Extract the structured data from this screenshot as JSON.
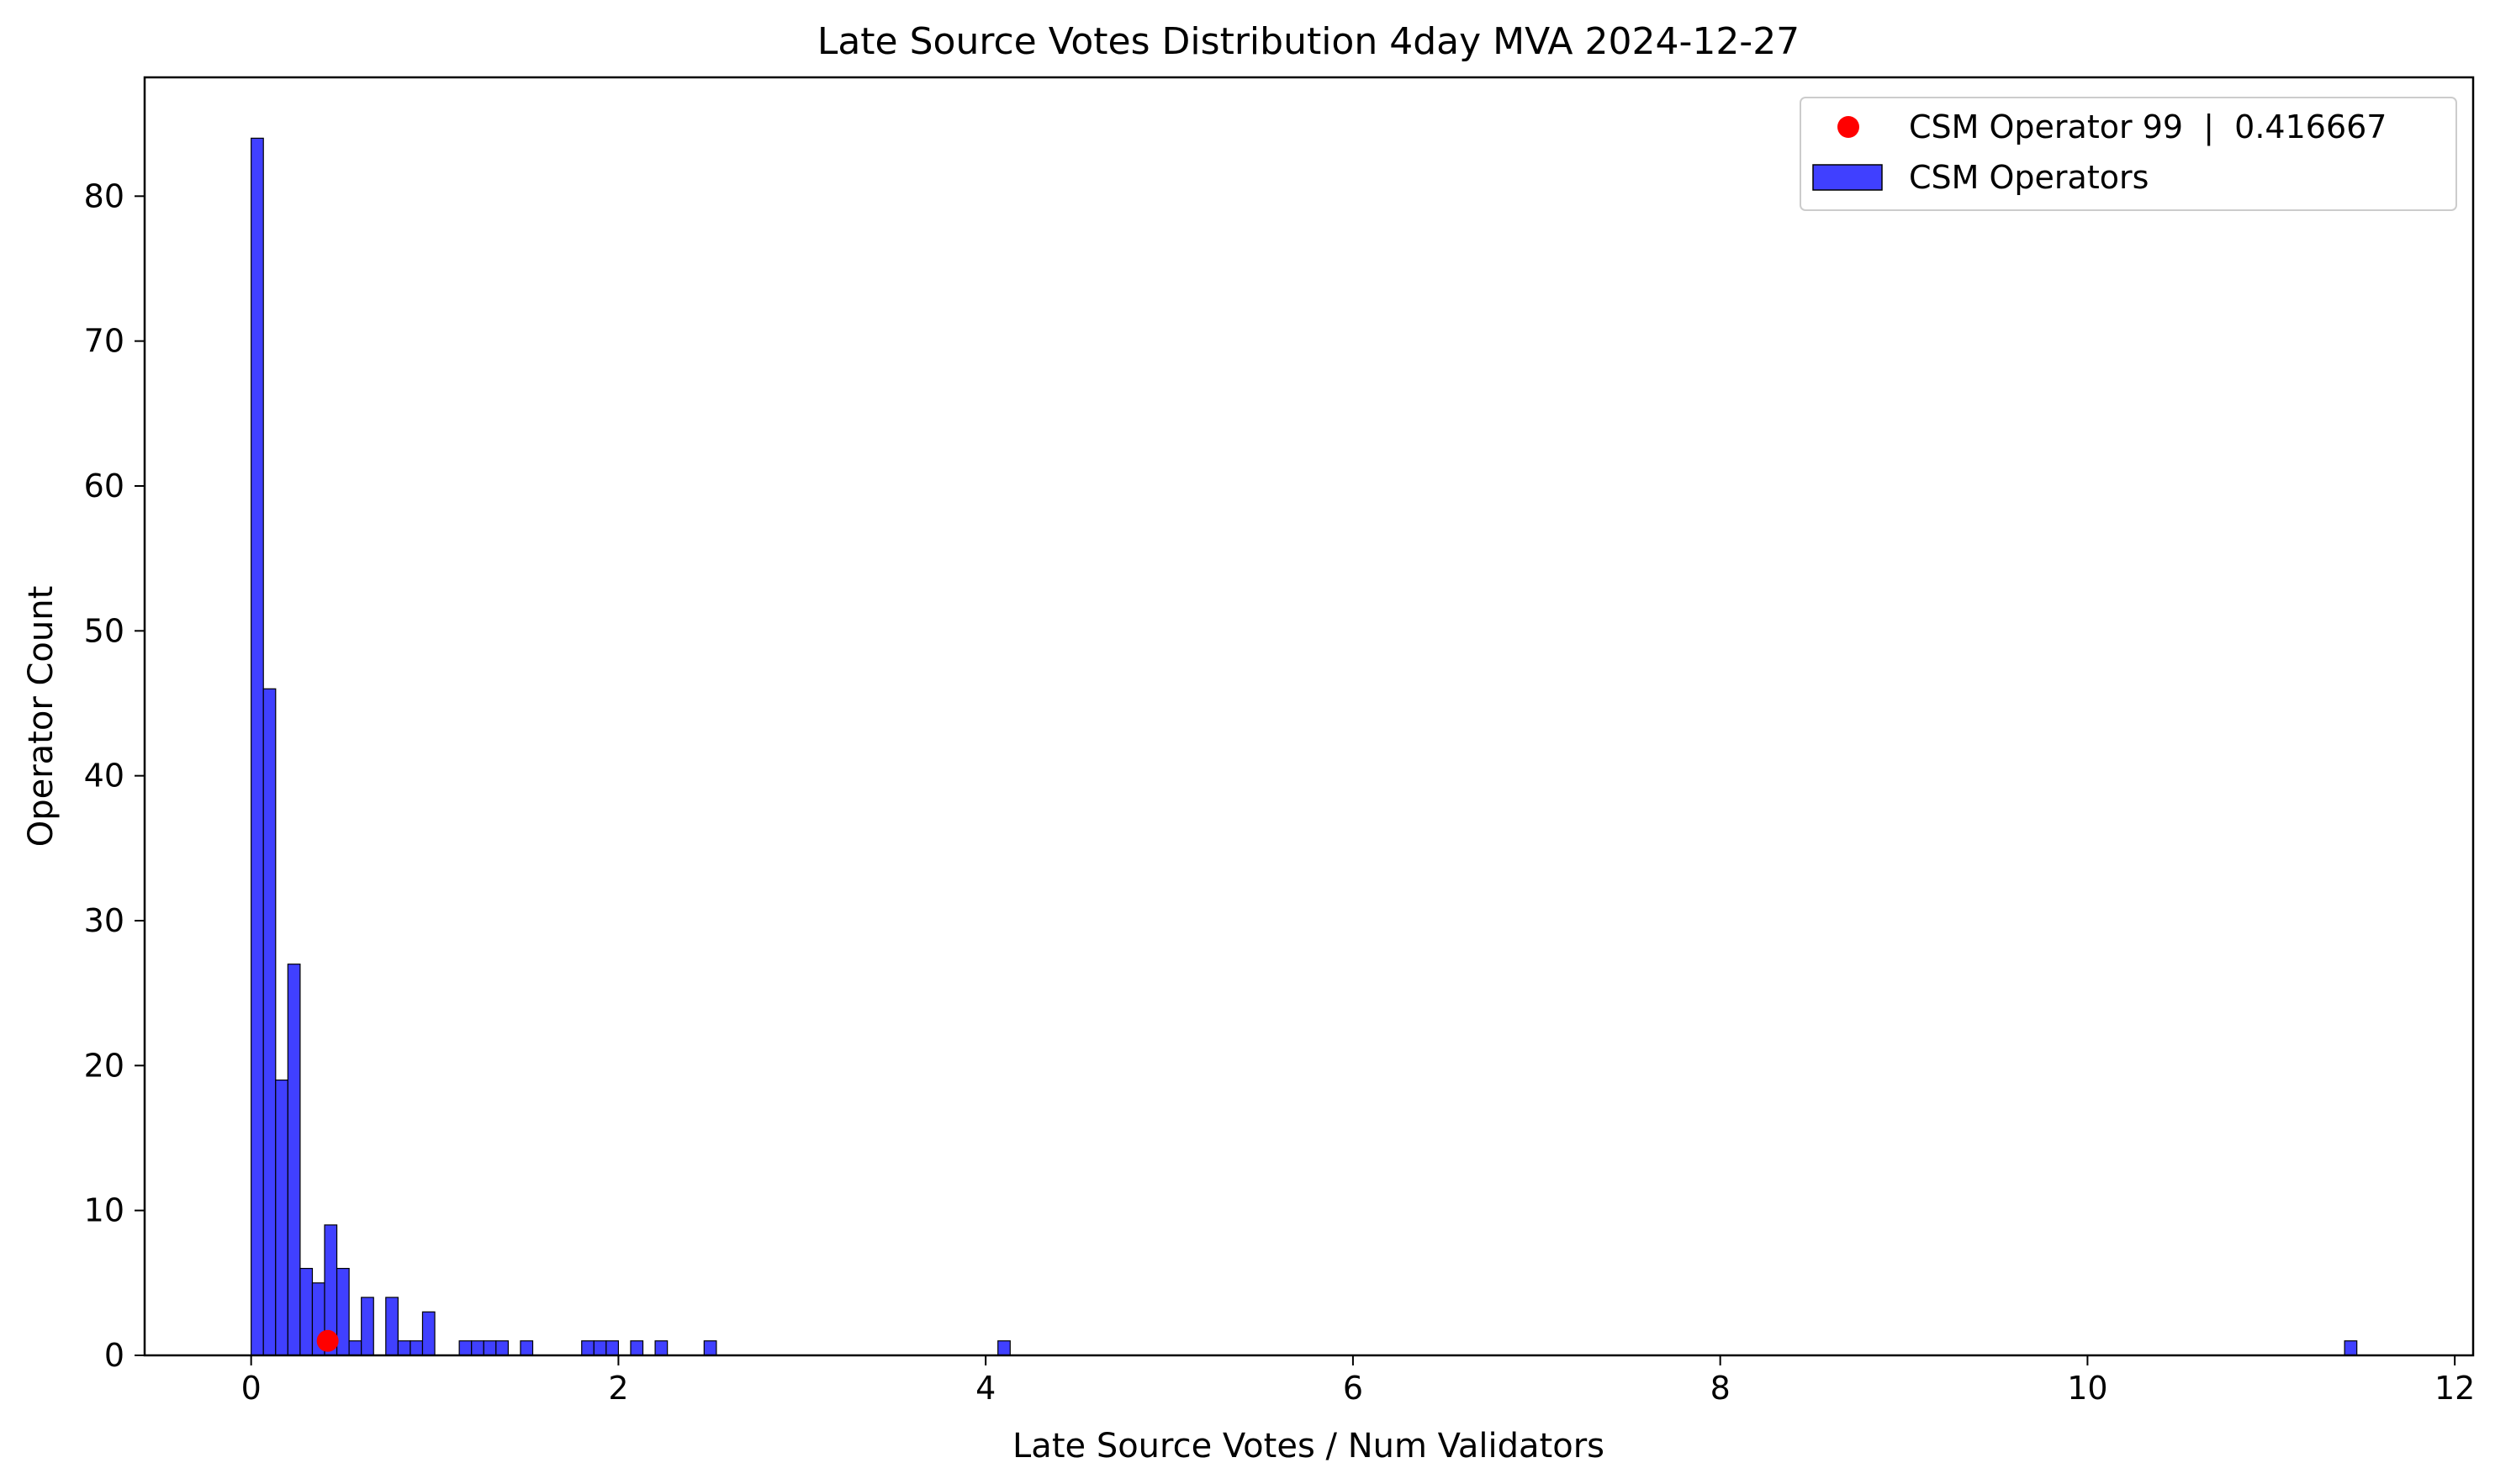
{
  "chart_data": {
    "type": "bar",
    "title": "Late Source Votes Distribution 4day MVA 2024-12-27",
    "xlabel": "Late Source Votes / Num Validators",
    "ylabel": "Operator Count",
    "xlim": [
      -0.58,
      12.1
    ],
    "ylim": [
      0,
      88.2
    ],
    "xticks": [
      0,
      2,
      4,
      6,
      8,
      10,
      12
    ],
    "xtick_labels": [
      "0",
      "2",
      "4",
      "6",
      "8",
      "10",
      "12"
    ],
    "yticks": [
      0,
      10,
      20,
      30,
      40,
      50,
      60,
      70,
      80
    ],
    "ytick_labels": [
      "0",
      "10",
      "20",
      "30",
      "40",
      "50",
      "60",
      "70",
      "80"
    ],
    "grid": false,
    "legend_position": "top-right",
    "bin_width": 0.0667,
    "bins": [
      {
        "x0": 0.0,
        "count": 84
      },
      {
        "x0": 0.0667,
        "count": 46
      },
      {
        "x0": 0.1333,
        "count": 19
      },
      {
        "x0": 0.2,
        "count": 27
      },
      {
        "x0": 0.2667,
        "count": 6
      },
      {
        "x0": 0.3333,
        "count": 5
      },
      {
        "x0": 0.4,
        "count": 9
      },
      {
        "x0": 0.4667,
        "count": 6
      },
      {
        "x0": 0.5333,
        "count": 1
      },
      {
        "x0": 0.6,
        "count": 4
      },
      {
        "x0": 0.7333,
        "count": 4
      },
      {
        "x0": 0.8,
        "count": 1
      },
      {
        "x0": 0.8667,
        "count": 1
      },
      {
        "x0": 0.9333,
        "count": 3
      },
      {
        "x0": 1.1333,
        "count": 1
      },
      {
        "x0": 1.2,
        "count": 1
      },
      {
        "x0": 1.2667,
        "count": 1
      },
      {
        "x0": 1.3333,
        "count": 1
      },
      {
        "x0": 1.4667,
        "count": 1
      },
      {
        "x0": 1.8,
        "count": 1
      },
      {
        "x0": 1.8667,
        "count": 1
      },
      {
        "x0": 1.9333,
        "count": 1
      },
      {
        "x0": 2.0667,
        "count": 1
      },
      {
        "x0": 2.2,
        "count": 1
      },
      {
        "x0": 2.4667,
        "count": 1
      },
      {
        "x0": 4.0667,
        "count": 1
      },
      {
        "x0": 11.4,
        "count": 1
      }
    ],
    "series": [
      {
        "name": "CSM Operators",
        "kind": "histogram",
        "color": "#4040ff",
        "edge_color": "#000000"
      },
      {
        "name": "CSM Operator 99  |  0.416667",
        "kind": "scatter",
        "color": "#ff0000",
        "points": [
          {
            "x": 0.416667,
            "y": 1
          }
        ]
      }
    ]
  }
}
